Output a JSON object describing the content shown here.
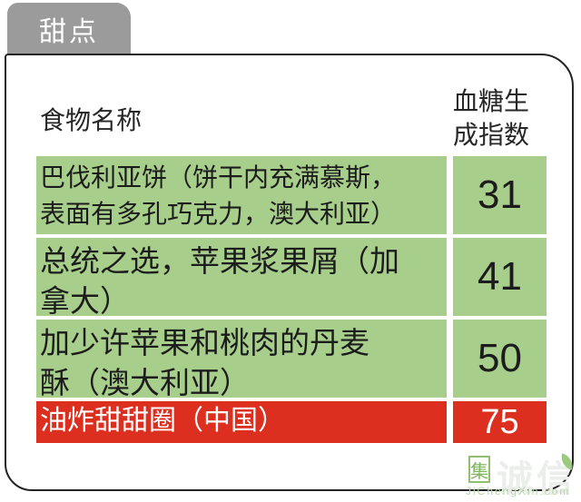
{
  "tab": {
    "label": "甜点"
  },
  "table": {
    "header": {
      "food": "食物名称",
      "gi": "血糖生成指数"
    },
    "rows": [
      {
        "name": "巴伐利亚饼（饼干内充满慕斯，表面有多孔巧克力，澳大利亚）",
        "value": "31",
        "highlight": false
      },
      {
        "name": "总统之选，苹果浆果屑（加拿大）",
        "value": "41",
        "highlight": false
      },
      {
        "name": "加少许苹果和桃肉的丹麦酥（澳大利亚）",
        "value": "50",
        "highlight": false
      },
      {
        "name": "油炸甜甜圈（中国）",
        "value": "75",
        "highlight": true
      }
    ]
  },
  "watermark": {
    "badge": "集",
    "brand": "诚信",
    "site": "JiChengXin.com"
  },
  "colors": {
    "tab_gray": "#9b9b9b",
    "row_green": "#a8ce8c",
    "highlight_red": "#dc2f1f",
    "panel_border": "#242424",
    "watermark_green": "#8fbf6f",
    "text_dark": "#1c1c1c",
    "text_white": "#ffffff"
  },
  "chart_data": {
    "type": "table",
    "title": "甜点",
    "columns": [
      "食物名称",
      "血糖生成指数"
    ],
    "rows": [
      [
        "巴伐利亚饼（饼干内充满慕斯，表面有多孔巧克力，澳大利亚）",
        31
      ],
      [
        "总统之选，苹果浆果屑（加拿大）",
        41
      ],
      [
        "加少许苹果和桃肉的丹麦酥（澳大利亚）",
        50
      ],
      [
        "油炸甜甜圈（中国）",
        75
      ]
    ],
    "highlight_row": "油炸甜甜圈（中国）",
    "row_colors": [
      "#a8ce8c",
      "#a8ce8c",
      "#a8ce8c",
      "#dc2f1f"
    ],
    "legend_position": "none",
    "grid": false
  }
}
